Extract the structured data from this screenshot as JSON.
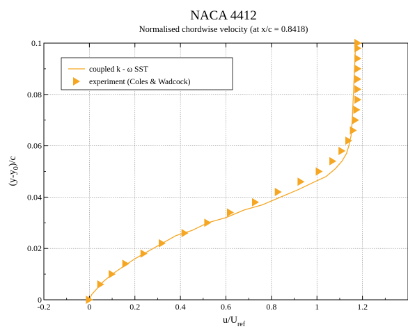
{
  "chart_data": {
    "type": "scatter",
    "title": "NACA 4412",
    "subtitle": "Normalised chordwise velocity (at x/c = 0.8418)",
    "xlabel": "u/U",
    "xlabel_sub": "ref",
    "ylabel": "(y-y",
    "ylabel_sub": "0",
    "ylabel_tail": ")/c",
    "xlim": [
      -0.2,
      1.4
    ],
    "ylim": [
      0,
      0.1
    ],
    "x_ticks": [
      -0.2,
      0,
      0.2,
      0.4,
      0.6,
      0.8,
      1,
      1.2
    ],
    "x_tick_labels": [
      "-0.2",
      "0",
      "0.2",
      "0.4",
      "0.6",
      "0.8",
      "1",
      "1.2"
    ],
    "y_ticks": [
      0,
      0.02,
      0.04,
      0.06,
      0.08,
      0.1
    ],
    "y_tick_labels": [
      "0",
      "0.02",
      "0.04",
      "0.06",
      "0.08",
      "0.1"
    ],
    "grid": true,
    "legend_position": "top-left",
    "colors": {
      "series": "#f5a623",
      "grid": "#888888",
      "axes": "#000000"
    },
    "series": [
      {
        "name": "coupled k - ω SST",
        "kind": "line",
        "x": [
          0,
          0.01,
          0.03,
          0.06,
          0.1,
          0.15,
          0.2,
          0.26,
          0.32,
          0.38,
          0.45,
          0.52,
          0.6,
          0.68,
          0.76,
          0.84,
          0.92,
          0.99,
          1.04,
          1.08,
          1.11,
          1.13,
          1.14,
          1.15,
          1.155,
          1.16,
          1.165,
          1.17
        ],
        "y": [
          0,
          0.002,
          0.004,
          0.007,
          0.01,
          0.013,
          0.016,
          0.019,
          0.022,
          0.025,
          0.027,
          0.03,
          0.032,
          0.035,
          0.037,
          0.04,
          0.043,
          0.046,
          0.048,
          0.051,
          0.054,
          0.057,
          0.06,
          0.064,
          0.07,
          0.08,
          0.09,
          0.1
        ]
      },
      {
        "name": "experiment (Coles & Wadcock)",
        "kind": "markers",
        "marker": "triangle-right",
        "x": [
          0,
          0.05,
          0.1,
          0.16,
          0.24,
          0.32,
          0.42,
          0.52,
          0.62,
          0.73,
          0.83,
          0.93,
          1.01,
          1.07,
          1.11,
          1.14,
          1.16,
          1.17,
          1.175,
          1.18,
          1.18,
          1.18,
          1.18,
          1.18,
          1.18,
          1.18,
          1.18,
          1.18
        ],
        "y": [
          0,
          0.006,
          0.01,
          0.014,
          0.018,
          0.022,
          0.026,
          0.03,
          0.034,
          0.038,
          0.042,
          0.046,
          0.05,
          0.054,
          0.058,
          0.062,
          0.066,
          0.07,
          0.074,
          0.078,
          0.082,
          0.086,
          0.09,
          0.094,
          0.098,
          0.1,
          0.1,
          0.1
        ]
      }
    ]
  }
}
